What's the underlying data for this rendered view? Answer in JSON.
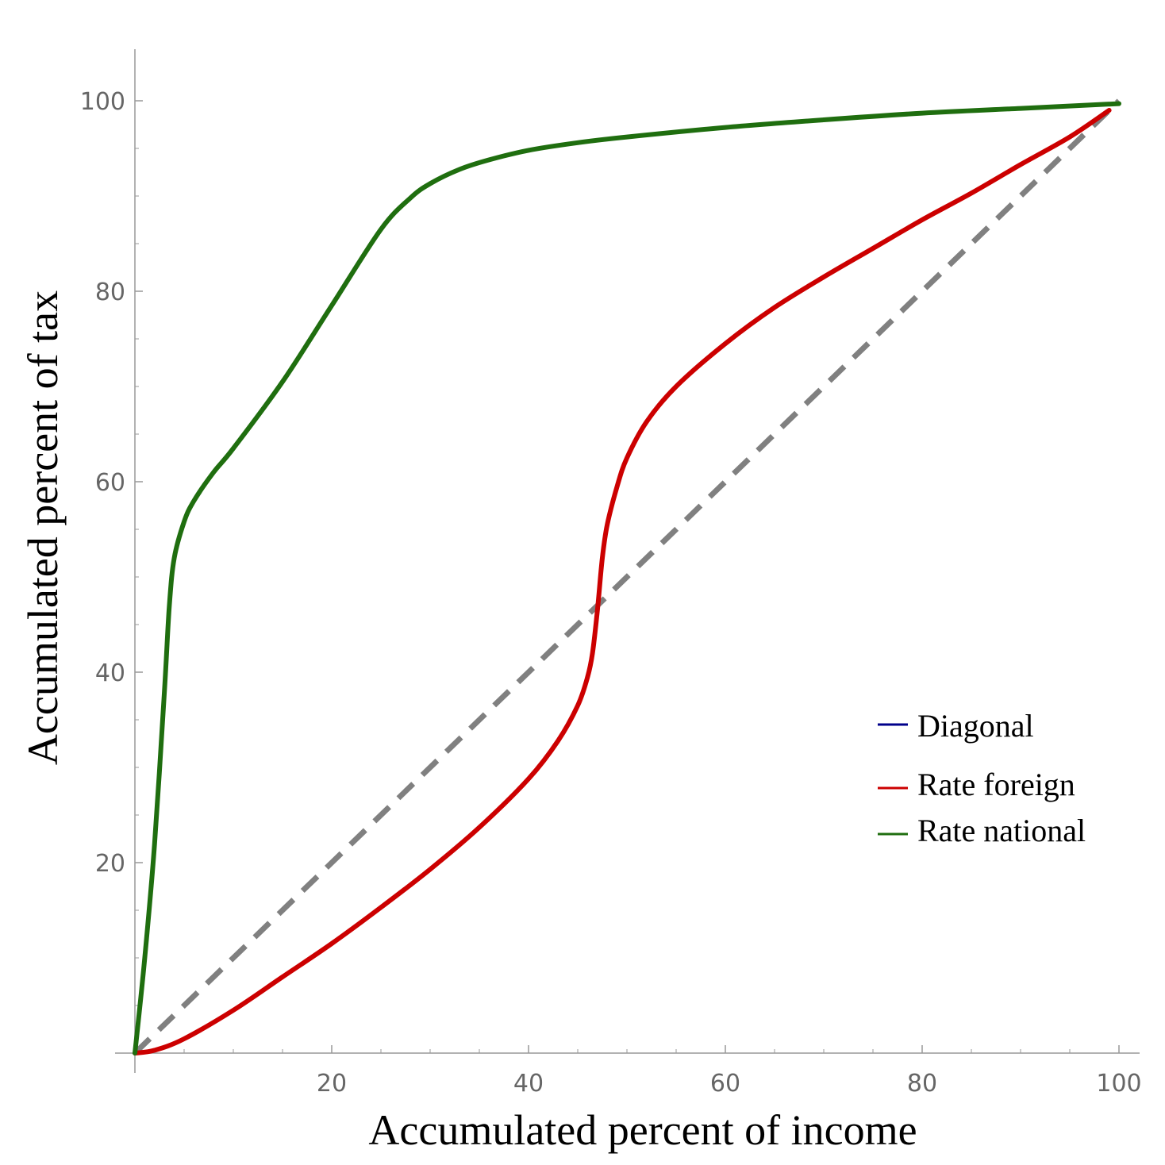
{
  "chart_data": {
    "type": "line",
    "xlabel": "Accumulated percent of income",
    "ylabel": "Accumulated percent of tax",
    "xlim": [
      0,
      100
    ],
    "ylim": [
      0,
      100
    ],
    "x_ticks": [
      20,
      40,
      60,
      80,
      100
    ],
    "y_ticks": [
      20,
      40,
      60,
      80,
      100
    ],
    "x_tick_labels": [
      "20",
      "40",
      "60",
      "80",
      "100"
    ],
    "y_tick_labels": [
      "20",
      "40",
      "60",
      "80",
      "100"
    ],
    "grid": false,
    "legend_position": "lower-right",
    "series": [
      {
        "name": "Diagonal",
        "color": "#00008b",
        "line_color": "#808080",
        "style": "dashed",
        "x": [
          0,
          100
        ],
        "y": [
          0,
          100
        ]
      },
      {
        "name": "Rate foreign",
        "color": "#cc0000",
        "style": "solid",
        "x": [
          0,
          2,
          5,
          10,
          15,
          20,
          25,
          30,
          35,
          40,
          43,
          45,
          46,
          46.5,
          47,
          47.5,
          48,
          49,
          50,
          52,
          55,
          60,
          65,
          70,
          75,
          80,
          85,
          90,
          95,
          99
        ],
        "y": [
          0,
          0.3,
          1.5,
          4.5,
          8,
          11.5,
          15.3,
          19.3,
          23.7,
          28.8,
          32.8,
          36.5,
          39.5,
          42,
          46.5,
          52,
          55.5,
          59.5,
          62.5,
          66.3,
          70,
          74.5,
          78.3,
          81.5,
          84.5,
          87.5,
          90.3,
          93.3,
          96.2,
          99
        ]
      },
      {
        "name": "Rate national",
        "color": "#1f6e0f",
        "style": "solid",
        "x": [
          0,
          1,
          2,
          3,
          3.5,
          4,
          5,
          6,
          8,
          10,
          15,
          20,
          25,
          28,
          30,
          33,
          36,
          40,
          45,
          50,
          60,
          70,
          80,
          90,
          100
        ],
        "y": [
          0,
          10,
          22,
          38,
          47,
          52,
          55.8,
          58,
          61,
          63.5,
          70.5,
          78.5,
          86.5,
          89.8,
          91.3,
          92.8,
          93.8,
          94.8,
          95.6,
          96.2,
          97.2,
          98,
          98.7,
          99.2,
          99.7
        ]
      }
    ]
  }
}
